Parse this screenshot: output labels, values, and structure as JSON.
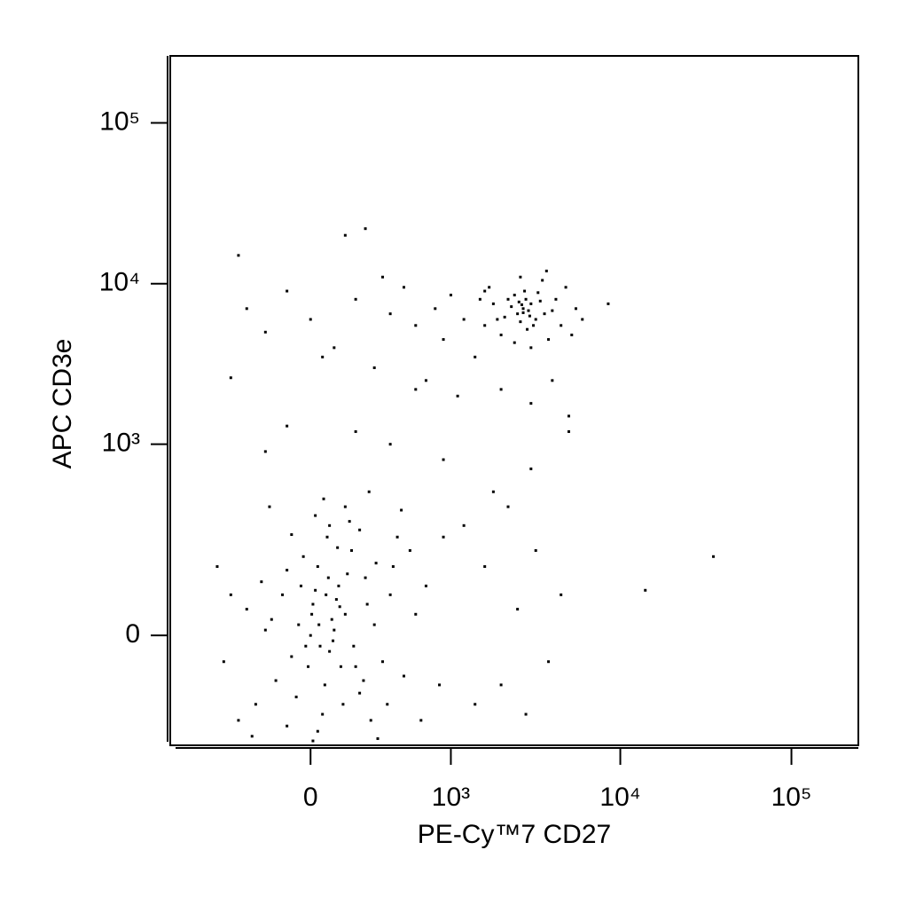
{
  "chart_data": {
    "type": "scatter",
    "xlabel": "PE-Cy™7 CD27",
    "ylabel": "APC CD3e",
    "xscale": "biexponential",
    "yscale": "biexponential",
    "color": "#000000",
    "xlim": [
      -1000,
      246000
    ],
    "ylim": [
      -300,
      261000
    ],
    "xticks": [
      0,
      {
        "value": 1000,
        "label": "10³"
      },
      {
        "value": 10000,
        "label": "10⁴"
      },
      {
        "value": 100000,
        "label": "10⁵"
      }
    ],
    "yticks": [
      0,
      {
        "value": 1000,
        "label": "10³"
      },
      {
        "value": 10000,
        "label": "10⁴"
      },
      {
        "value": 100000,
        "label": "10⁵"
      }
    ],
    "x": [
      -50,
      10,
      80,
      120,
      150,
      200,
      -120,
      -200,
      30,
      60,
      90,
      110,
      -80,
      250,
      300,
      -300,
      0,
      40,
      180,
      220,
      -150,
      70,
      140,
      -30,
      350,
      400,
      -250,
      20,
      100,
      160,
      -100,
      50,
      260,
      130,
      -60,
      310,
      -220,
      190,
      5,
      75,
      -10,
      240,
      115,
      -170,
      420,
      500,
      600,
      -350,
      -400,
      80,
      30,
      170,
      -80,
      450,
      280,
      35,
      95,
      125,
      -40,
      65,
      700,
      550,
      850,
      -450,
      -500,
      150,
      -100,
      380,
      20,
      220,
      10,
      320,
      -270,
      650,
      900,
      55,
      -180,
      270,
      480,
      -20,
      1200,
      1600,
      2000,
      2500,
      3200,
      2200,
      3800,
      4500,
      1400,
      2800,
      14000,
      35000,
      1800,
      900,
      -200,
      400,
      3000,
      5000,
      -100,
      200,
      -300,
      -200,
      -100,
      0,
      100,
      200,
      300,
      400,
      500,
      600,
      700,
      800,
      900,
      1000,
      1200,
      1400,
      1600,
      -400,
      -350,
      150,
      250,
      50,
      350,
      600,
      1100,
      2000,
      3000,
      4000,
      5000,
      8500,
      2700,
      2500,
      3000,
      2800,
      2300,
      3200,
      2600,
      2900,
      2400,
      3400,
      2100,
      3600,
      2750,
      3100,
      2200,
      2650,
      2950,
      3300,
      2550,
      2850,
      1800,
      1900,
      4000,
      4200,
      4500,
      1700,
      3800,
      2000,
      3500,
      2600,
      5500,
      6000,
      1500,
      4800,
      3000,
      2400,
      3700,
      1600,
      5200,
      2700
    ],
    "values": [
      20,
      60,
      -30,
      100,
      40,
      -60,
      80,
      10,
      150,
      -100,
      30,
      70,
      -40,
      120,
      20,
      50,
      0,
      -20,
      200,
      -120,
      -90,
      250,
      -150,
      180,
      -50,
      80,
      -150,
      90,
      10,
      130,
      140,
      -180,
      60,
      -60,
      -130,
      160,
      110,
      -20,
      40,
      120,
      -60,
      -90,
      210,
      30,
      150,
      -80,
      40,
      -200,
      80,
      300,
      -240,
      320,
      260,
      250,
      -200,
      20,
      -10,
      55,
      100,
      80,
      100,
      200,
      -100,
      -50,
      150,
      400,
      -220,
      -150,
      350,
      280,
      -280,
      -270,
      -260,
      -200,
      250,
      450,
      400,
      500,
      380,
      -20,
      300,
      150,
      -100,
      50,
      200,
      400,
      -50,
      80,
      -150,
      -180,
      90,
      180,
      500,
      800,
      900,
      1000,
      700,
      1500,
      1300,
      1200,
      7000,
      5000,
      9000,
      6000,
      4000,
      8000,
      3000,
      6500,
      9500,
      5500,
      2500,
      7000,
      4500,
      8500,
      6000,
      3500,
      9000,
      2600,
      15000,
      20000,
      22000,
      3500,
      11000,
      2200,
      2000,
      2200,
      1800,
      2500,
      1200,
      7500,
      7000,
      6500,
      7500,
      8000,
      7200,
      6000,
      5800,
      6800,
      8500,
      7800,
      6200,
      6500,
      9000,
      5500,
      8000,
      7400,
      6300,
      8800,
      7700,
      5200,
      7500,
      6000,
      6800,
      8000,
      5500,
      9500,
      4500,
      4800,
      10500,
      11000,
      7000,
      6000,
      8000,
      9500,
      4000,
      4300,
      12000,
      5500,
      4800,
      6600
    ]
  }
}
